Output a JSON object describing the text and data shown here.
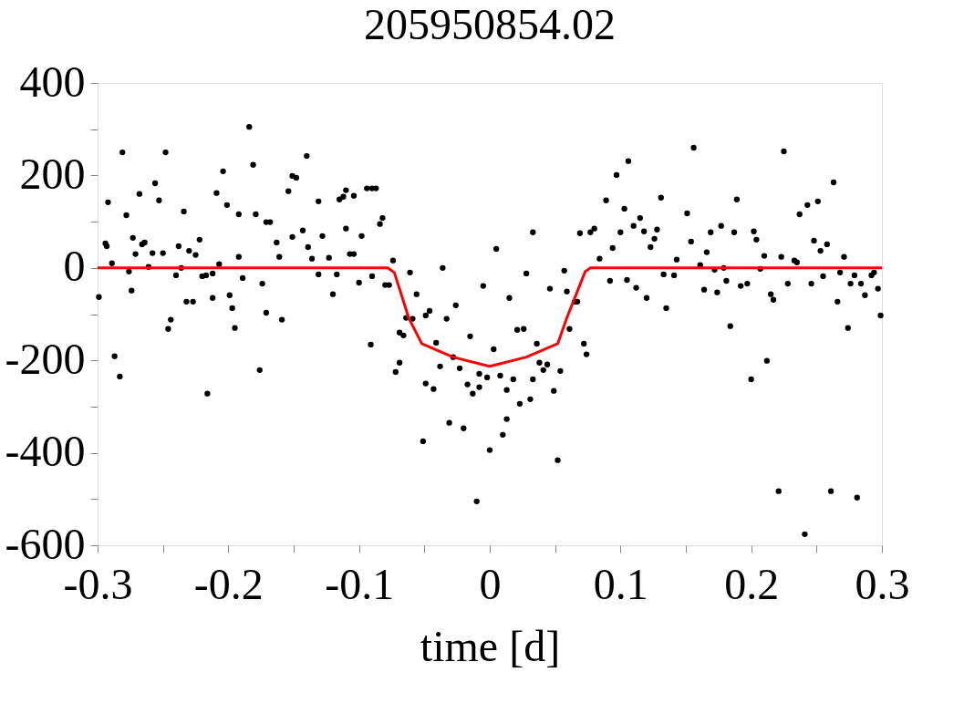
{
  "chart_data": {
    "type": "scatter",
    "title": "205950854.02",
    "xlabel": "time [d]",
    "xlim": [
      -0.3,
      0.3
    ],
    "ylim": [
      -600,
      400
    ],
    "xticks": [
      -0.3,
      {
        "value": -0.25,
        "label": null
      },
      -0.2,
      {
        "value": -0.15,
        "label": null
      },
      -0.1,
      {
        "value": -0.05,
        "label": null
      },
      0,
      {
        "value": 0.05,
        "label": null
      },
      0.1,
      {
        "value": 0.15,
        "label": null
      },
      0.2,
      {
        "value": 0.25,
        "label": null
      },
      0.3
    ],
    "yticks": [
      -600,
      {
        "value": -500,
        "label": null
      },
      -400,
      {
        "value": -300,
        "label": null
      },
      -200,
      {
        "value": -100,
        "label": null
      },
      0,
      {
        "value": 100,
        "label": null
      },
      200,
      {
        "value": 300,
        "label": null
      },
      400
    ],
    "grid": false,
    "marker": "circle",
    "series": [
      {
        "color": "#000000",
        "x": [
          -0.299,
          -0.294,
          -0.293,
          -0.292,
          -0.289,
          -0.287,
          -0.283,
          -0.281,
          -0.278,
          -0.276,
          -0.274,
          -0.273,
          -0.271,
          -0.268,
          -0.266,
          -0.264,
          -0.261,
          -0.258,
          -0.256,
          -0.253,
          -0.25,
          -0.248,
          -0.246,
          -0.244,
          -0.24,
          -0.238,
          -0.236,
          -0.234,
          -0.232,
          -0.227,
          -0.23,
          -0.225,
          -0.222,
          -0.22,
          -0.217,
          -0.216,
          -0.212,
          -0.212,
          -0.209,
          -0.207,
          -0.204,
          -0.201,
          -0.199,
          -0.197,
          -0.195,
          -0.192,
          -0.192,
          -0.189,
          -0.184,
          -0.181,
          -0.179,
          -0.176,
          -0.174,
          -0.171,
          -0.171,
          -0.168,
          -0.163,
          -0.161,
          -0.159,
          -0.154,
          -0.151,
          -0.148,
          -0.151,
          -0.143,
          -0.14,
          -0.139,
          -0.136,
          -0.131,
          -0.131,
          -0.128,
          -0.123,
          -0.12,
          -0.117,
          -0.115,
          -0.112,
          -0.11,
          -0.11,
          -0.107,
          -0.104,
          -0.104,
          -0.1,
          -0.098,
          -0.094,
          -0.09,
          -0.087,
          -0.091,
          -0.09,
          -0.084,
          -0.082,
          -0.08,
          -0.077,
          -0.074,
          -0.069,
          -0.066,
          -0.069,
          -0.072,
          -0.064,
          -0.059,
          -0.061,
          -0.056,
          -0.051,
          -0.049,
          -0.046,
          -0.049,
          -0.043,
          -0.041,
          -0.038,
          -0.036,
          -0.033,
          -0.031,
          -0.028,
          -0.026,
          -0.023,
          -0.02,
          -0.017,
          -0.015,
          -0.013,
          -0.01,
          -0.008,
          -0.008,
          -0.005,
          -0.002,
          0.0,
          0.003,
          0.005,
          0.008,
          0.01,
          0.013,
          0.013,
          0.015,
          0.018,
          0.021,
          0.026,
          0.023,
          0.028,
          0.031,
          0.033,
          0.033,
          0.036,
          0.038,
          0.044,
          0.041,
          0.046,
          0.049,
          0.052,
          0.054,
          0.057,
          0.059,
          0.061,
          0.065,
          0.067,
          0.069,
          0.072,
          0.074,
          0.077,
          0.08,
          0.084,
          0.089,
          0.092,
          0.094,
          0.097,
          0.1,
          0.103,
          0.105,
          0.106,
          0.11,
          0.112,
          0.115,
          0.118,
          0.12,
          0.123,
          0.126,
          0.128,
          0.131,
          0.133,
          0.135,
          0.141,
          0.143,
          0.151,
          0.154,
          0.156,
          0.161,
          0.164,
          0.166,
          0.169,
          0.172,
          0.174,
          0.177,
          0.179,
          0.181,
          0.184,
          0.187,
          0.189,
          0.192,
          0.197,
          0.2,
          0.202,
          0.204,
          0.207,
          0.21,
          0.212,
          0.215,
          0.217,
          0.221,
          0.223,
          0.225,
          0.228,
          0.233,
          0.235,
          0.237,
          0.241,
          0.243,
          0.246,
          0.248,
          0.251,
          0.253,
          0.255,
          0.258,
          0.261,
          0.263,
          0.266,
          0.268,
          0.271,
          0.274,
          0.276,
          0.279,
          0.281,
          0.284,
          0.287,
          0.292,
          0.294,
          0.297,
          0.299
        ],
        "values": [
          -63,
          53,
          47,
          142,
          10,
          -191,
          -235,
          250,
          114,
          -8,
          -49,
          65,
          30,
          160,
          51,
          55,
          2,
          32,
          183,
          146,
          32,
          250,
          -132,
          -112,
          -16,
          47,
          0,
          122,
          -73,
          -73,
          37,
          28,
          61,
          -18,
          -16,
          -272,
          -12,
          -65,
          162,
          8,
          209,
          136,
          -59,
          -87,
          -130,
          116,
          24,
          -22,
          305,
          223,
          116,
          -221,
          -34,
          -97,
          99,
          99,
          55,
          24,
          -112,
          166,
          199,
          195,
          67,
          81,
          242,
          45,
          20,
          -14,
          144,
          69,
          22,
          -57,
          -14,
          148,
          154,
          85,
          168,
          30,
          156,
          30,
          -32,
          69,
          172,
          172,
          172,
          -166,
          -18,
          95,
          108,
          -37,
          -37,
          16,
          -140,
          -146,
          -205,
          -225,
          -108,
          -110,
          -10,
          -57,
          -375,
          -103,
          -93,
          -250,
          -262,
          -162,
          -213,
          0,
          -110,
          -335,
          -193,
          -81,
          -217,
          -347,
          -252,
          -148,
          -272,
          -505,
          -229,
          -258,
          -39,
          -237,
          -394,
          -176,
          41,
          -233,
          -361,
          -264,
          -327,
          -65,
          -241,
          -134,
          -132,
          -294,
          -12,
          -284,
          77,
          -241,
          -164,
          -205,
          -209,
          -221,
          -45,
          -266,
          -416,
          -223,
          -6,
          -51,
          -132,
          -73,
          -73,
          75,
          -164,
          -187,
          77,
          85,
          20,
          146,
          -28,
          43,
          201,
          77,
          128,
          -26,
          231,
          91,
          -43,
          108,
          79,
          -65,
          45,
          63,
          83,
          152,
          -14,
          -87,
          -16,
          18,
          118,
          57,
          260,
          6,
          -47,
          34,
          77,
          -4,
          -53,
          91,
          0,
          -28,
          -126,
          77,
          148,
          -39,
          -34,
          -241,
          79,
          61,
          -2,
          26,
          -201,
          -57,
          -69,
          -483,
          24,
          252,
          -34,
          16,
          12,
          116,
          -576,
          136,
          -34,
          59,
          144,
          37,
          -18,
          51,
          -483,
          185,
          -73,
          -10,
          24,
          -130,
          -34,
          -16,
          -497,
          -34,
          -59,
          -16,
          -10,
          -45,
          -103
        ]
      },
      {
        "type": "line",
        "color": "#ff0000",
        "marker": "none",
        "x": [
          -0.3,
          -0.078,
          -0.073,
          -0.062,
          -0.052,
          -0.028,
          0.0,
          0.028,
          0.052,
          0.059,
          0.073,
          0.077,
          0.3
        ],
        "values": [
          0,
          0,
          -10,
          -108,
          -164,
          -193,
          -213,
          -193,
          -164,
          -108,
          -8,
          0,
          0
        ]
      }
    ]
  }
}
